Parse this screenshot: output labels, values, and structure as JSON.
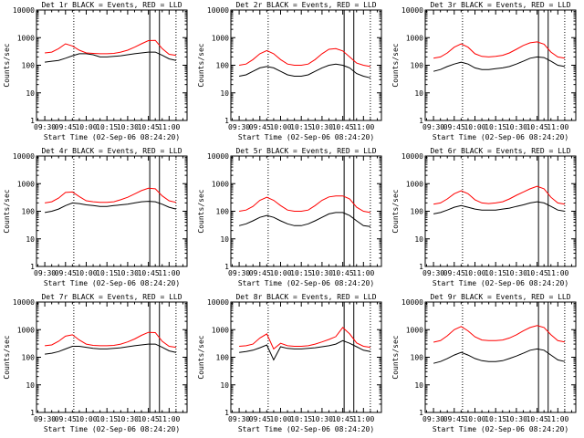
{
  "chart_data": [
    {
      "type": "line",
      "title": "Det 1r BLACK = Events, RED = LLD",
      "xlabel": "Start Time (02-Sep-06 08:24:20)",
      "ylabel": "Counts/sec",
      "xticks": [
        "09:30",
        "09:45",
        "10:00",
        "10:15",
        "10:30",
        "10:45",
        "11:00"
      ],
      "yticks": [
        "1",
        "10",
        "100",
        "1000",
        "10000"
      ],
      "yscale": "log",
      "ylim": [
        1,
        10000
      ],
      "x_minutes": [
        0,
        5,
        10,
        15,
        20,
        25,
        30,
        35,
        40,
        45,
        50,
        55,
        60,
        65,
        70,
        75,
        80,
        85,
        90,
        95
      ],
      "series": [
        {
          "name": "Events",
          "color": "#000000",
          "values": [
            130,
            140,
            150,
            180,
            220,
            260,
            260,
            240,
            200,
            200,
            210,
            220,
            240,
            260,
            280,
            300,
            300,
            230,
            170,
            150
          ]
        },
        {
          "name": "LLD",
          "color": "#ff0000",
          "values": [
            280,
            300,
            400,
            600,
            500,
            350,
            280,
            270,
            260,
            260,
            270,
            300,
            350,
            450,
            600,
            780,
            800,
            400,
            250,
            230
          ]
        }
      ],
      "vlines_dotted_min": [
        21,
        95
      ],
      "vlines_solid_min": [
        76,
        83
      ]
    },
    {
      "type": "line",
      "title": "Det 2r BLACK = Events, RED = LLD",
      "xlabel": "Start Time (02-Sep-06 08:24:20)",
      "ylabel": "Counts/sec",
      "xticks": [
        "09:30",
        "09:45",
        "10:00",
        "10:15",
        "10:30",
        "10:45",
        "11:00"
      ],
      "yticks": [
        "1",
        "10",
        "100",
        "1000",
        "10000"
      ],
      "yscale": "log",
      "ylim": [
        1,
        10000
      ],
      "x_minutes": [
        0,
        5,
        10,
        15,
        20,
        25,
        30,
        35,
        40,
        45,
        50,
        55,
        60,
        65,
        70,
        75,
        80,
        85,
        90,
        95
      ],
      "series": [
        {
          "name": "Events",
          "color": "#000000",
          "values": [
            40,
            45,
            60,
            80,
            90,
            80,
            60,
            45,
            40,
            40,
            45,
            60,
            80,
            100,
            110,
            100,
            80,
            50,
            40,
            35
          ]
        },
        {
          "name": "LLD",
          "color": "#ff0000",
          "values": [
            100,
            110,
            160,
            260,
            340,
            260,
            160,
            110,
            100,
            100,
            110,
            160,
            260,
            380,
            400,
            330,
            200,
            120,
            100,
            90
          ]
        }
      ],
      "vlines_dotted_min": [
        21,
        95
      ],
      "vlines_solid_min": [
        76,
        83
      ]
    },
    {
      "type": "line",
      "title": "Det 3r BLACK = Events, RED = LLD",
      "xlabel": "Start Time (02-Sep-06 08:24:20)",
      "ylabel": "Counts/sec",
      "xticks": [
        "09:30",
        "09:45",
        "10:00",
        "10:15",
        "10:30",
        "10:45",
        "11:00"
      ],
      "yticks": [
        "1",
        "10",
        "100",
        "1000",
        "10000"
      ],
      "yscale": "log",
      "ylim": [
        1,
        10000
      ],
      "x_minutes": [
        0,
        5,
        10,
        15,
        20,
        25,
        30,
        35,
        40,
        45,
        50,
        55,
        60,
        65,
        70,
        75,
        80,
        85,
        90,
        95
      ],
      "series": [
        {
          "name": "Events",
          "color": "#000000",
          "values": [
            60,
            70,
            90,
            110,
            130,
            110,
            80,
            70,
            70,
            75,
            80,
            90,
            110,
            140,
            180,
            200,
            190,
            140,
            100,
            90
          ]
        },
        {
          "name": "LLD",
          "color": "#ff0000",
          "values": [
            180,
            200,
            280,
            450,
            600,
            450,
            260,
            210,
            200,
            210,
            230,
            280,
            380,
            520,
            650,
            700,
            580,
            300,
            200,
            180
          ]
        }
      ],
      "vlines_dotted_min": [
        21,
        95
      ],
      "vlines_solid_min": [
        76,
        83
      ]
    },
    {
      "type": "line",
      "title": "Det 4r BLACK = Events, RED = LLD",
      "xlabel": "Start Time (02-Sep-06 08:24:20)",
      "ylabel": "Counts/sec",
      "xticks": [
        "09:30",
        "09:45",
        "10:00",
        "10:15",
        "10:30",
        "10:45",
        "11:00"
      ],
      "yticks": [
        "1",
        "10",
        "100",
        "1000",
        "10000"
      ],
      "yscale": "log",
      "ylim": [
        1,
        10000
      ],
      "x_minutes": [
        0,
        5,
        10,
        15,
        20,
        25,
        30,
        35,
        40,
        45,
        50,
        55,
        60,
        65,
        70,
        75,
        80,
        85,
        90,
        95
      ],
      "series": [
        {
          "name": "Events",
          "color": "#000000",
          "values": [
            90,
            100,
            120,
            160,
            200,
            190,
            170,
            160,
            150,
            150,
            160,
            170,
            180,
            200,
            220,
            230,
            220,
            180,
            140,
            120
          ]
        },
        {
          "name": "LLD",
          "color": "#ff0000",
          "values": [
            200,
            220,
            300,
            480,
            500,
            340,
            240,
            220,
            210,
            210,
            220,
            260,
            320,
            420,
            560,
            680,
            650,
            360,
            240,
            210
          ]
        }
      ],
      "vlines_dotted_min": [
        21,
        95
      ],
      "vlines_solid_min": [
        76,
        83
      ]
    },
    {
      "type": "line",
      "title": "Det 5r BLACK = Events, RED = LLD",
      "xlabel": "Start Time (02-Sep-06 08:24:20)",
      "ylabel": "Counts/sec",
      "xticks": [
        "09:30",
        "09:45",
        "10:00",
        "10:15",
        "10:30",
        "10:45",
        "11:00"
      ],
      "yticks": [
        "1",
        "10",
        "100",
        "1000",
        "10000"
      ],
      "yscale": "log",
      "ylim": [
        1,
        10000
      ],
      "x_minutes": [
        0,
        5,
        10,
        15,
        20,
        25,
        30,
        35,
        40,
        45,
        50,
        55,
        60,
        65,
        70,
        75,
        80,
        85,
        90,
        95
      ],
      "series": [
        {
          "name": "Events",
          "color": "#000000",
          "values": [
            30,
            35,
            45,
            60,
            70,
            60,
            45,
            35,
            30,
            30,
            35,
            45,
            60,
            80,
            90,
            90,
            70,
            45,
            30,
            28
          ]
        },
        {
          "name": "LLD",
          "color": "#ff0000",
          "values": [
            100,
            110,
            150,
            250,
            320,
            250,
            160,
            110,
            100,
            100,
            110,
            160,
            250,
            330,
            360,
            360,
            280,
            140,
            100,
            90
          ]
        }
      ],
      "vlines_dotted_min": [
        21,
        95
      ],
      "vlines_solid_min": [
        76,
        83
      ]
    },
    {
      "type": "line",
      "title": "Det 6r BLACK = Events, RED = LLD",
      "xlabel": "Start Time (02-Sep-06 08:24:20)",
      "ylabel": "Counts/sec",
      "xticks": [
        "09:30",
        "09:45",
        "10:00",
        "10:15",
        "10:30",
        "10:45",
        "11:00"
      ],
      "yticks": [
        "1",
        "10",
        "100",
        "1000",
        "10000"
      ],
      "yscale": "log",
      "ylim": [
        1,
        10000
      ],
      "x_minutes": [
        0,
        5,
        10,
        15,
        20,
        25,
        30,
        35,
        40,
        45,
        50,
        55,
        60,
        65,
        70,
        75,
        80,
        85,
        90,
        95
      ],
      "series": [
        {
          "name": "Events",
          "color": "#000000",
          "values": [
            80,
            90,
            110,
            140,
            160,
            140,
            120,
            110,
            110,
            110,
            120,
            130,
            150,
            170,
            200,
            220,
            200,
            150,
            110,
            100
          ]
        },
        {
          "name": "LLD",
          "color": "#ff0000",
          "values": [
            180,
            200,
            280,
            430,
            550,
            430,
            260,
            200,
            190,
            200,
            220,
            280,
            380,
            500,
            650,
            800,
            650,
            320,
            200,
            180
          ]
        }
      ],
      "vlines_dotted_min": [
        21,
        95
      ],
      "vlines_solid_min": [
        76,
        83
      ]
    },
    {
      "type": "line",
      "title": "Det 7r BLACK = Events, RED = LLD",
      "xlabel": "Start Time (02-Sep-06 08:24:20)",
      "ylabel": "Counts/sec",
      "xticks": [
        "09:30",
        "09:45",
        "10:00",
        "10:15",
        "10:30",
        "10:45",
        "11:00"
      ],
      "yticks": [
        "1",
        "10",
        "100",
        "1000",
        "10000"
      ],
      "yscale": "log",
      "ylim": [
        1,
        10000
      ],
      "x_minutes": [
        0,
        5,
        10,
        15,
        20,
        25,
        30,
        35,
        40,
        45,
        50,
        55,
        60,
        65,
        70,
        75,
        80,
        85,
        90,
        95
      ],
      "series": [
        {
          "name": "Events",
          "color": "#000000",
          "values": [
            130,
            140,
            160,
            200,
            250,
            250,
            230,
            210,
            200,
            200,
            210,
            220,
            240,
            260,
            280,
            300,
            300,
            230,
            170,
            150
          ]
        },
        {
          "name": "LLD",
          "color": "#ff0000",
          "values": [
            260,
            280,
            380,
            580,
            650,
            420,
            300,
            270,
            260,
            260,
            270,
            300,
            360,
            460,
            620,
            800,
            780,
            380,
            250,
            230
          ]
        }
      ],
      "vlines_dotted_min": [
        21,
        95
      ],
      "vlines_solid_min": [
        76,
        83
      ]
    },
    {
      "type": "line",
      "title": "Det 8r BLACK = Events, RED = LLD",
      "xlabel": "Start Time (02-Sep-06 08:24:20)",
      "ylabel": "Counts/sec",
      "xticks": [
        "09:30",
        "09:45",
        "10:00",
        "10:15",
        "10:30",
        "10:45",
        "11:00"
      ],
      "yticks": [
        "1",
        "10",
        "100",
        "1000",
        "10000"
      ],
      "yscale": "log",
      "ylim": [
        1,
        10000
      ],
      "x_minutes": [
        0,
        5,
        10,
        15,
        20,
        25,
        30,
        35,
        40,
        45,
        50,
        55,
        60,
        65,
        70,
        75,
        80,
        85,
        90,
        95
      ],
      "series": [
        {
          "name": "Events",
          "color": "#000000",
          "values": [
            150,
            160,
            180,
            220,
            280,
            80,
            240,
            210,
            200,
            200,
            210,
            220,
            240,
            260,
            300,
            400,
            320,
            240,
            180,
            160
          ]
        },
        {
          "name": "LLD",
          "color": "#ff0000",
          "values": [
            250,
            260,
            300,
            500,
            700,
            200,
            320,
            260,
            250,
            250,
            260,
            300,
            360,
            440,
            560,
            1200,
            700,
            330,
            250,
            230
          ]
        }
      ],
      "vlines_dotted_min": [
        21,
        95
      ],
      "vlines_solid_min": [
        76,
        83
      ]
    },
    {
      "type": "line",
      "title": "Det 9r BLACK = Events, RED = LLD",
      "xlabel": "Start Time (02-Sep-06 08:24:20)",
      "ylabel": "Counts/sec",
      "xticks": [
        "09:30",
        "09:45",
        "10:00",
        "10:15",
        "10:30",
        "10:45",
        "11:00"
      ],
      "yticks": [
        "1",
        "10",
        "100",
        "1000",
        "10000"
      ],
      "yscale": "log",
      "ylim": [
        1,
        10000
      ],
      "x_minutes": [
        0,
        5,
        10,
        15,
        20,
        25,
        30,
        35,
        40,
        45,
        50,
        55,
        60,
        65,
        70,
        75,
        80,
        85,
        90,
        95
      ],
      "series": [
        {
          "name": "Events",
          "color": "#000000",
          "values": [
            60,
            70,
            90,
            120,
            150,
            120,
            90,
            75,
            70,
            70,
            75,
            90,
            110,
            140,
            180,
            200,
            180,
            120,
            80,
            70
          ]
        },
        {
          "name": "LLD",
          "color": "#ff0000",
          "values": [
            350,
            400,
            600,
            1000,
            1300,
            900,
            550,
            420,
            400,
            400,
            420,
            500,
            650,
            900,
            1200,
            1400,
            1200,
            650,
            400,
            360
          ]
        }
      ],
      "vlines_dotted_min": [
        21,
        95
      ],
      "vlines_solid_min": [
        76,
        83
      ]
    }
  ]
}
